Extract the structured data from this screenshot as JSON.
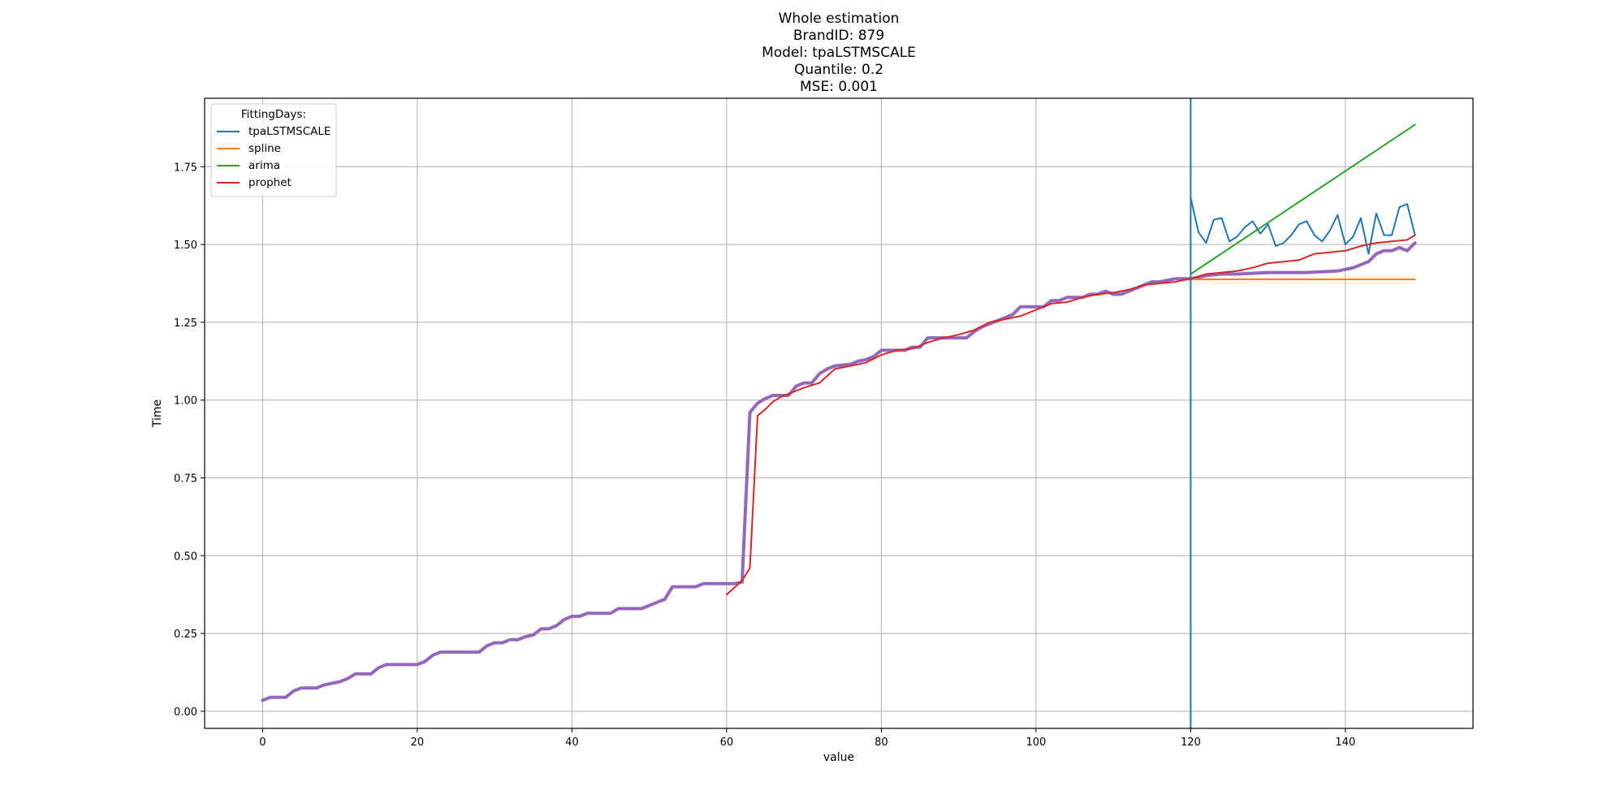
{
  "chart_data": {
    "type": "line",
    "title_lines": [
      "Whole estimation",
      "BrandID: 879",
      "Model: tpaLSTMSCALE",
      "Quantile: 0.2",
      "MSE: 0.001"
    ],
    "xlabel": "value",
    "ylabel": "Time",
    "xlim": [
      -7.5,
      156.5
    ],
    "ylim": [
      -0.055,
      1.97
    ],
    "xticks": [
      0,
      20,
      40,
      60,
      80,
      100,
      120,
      140
    ],
    "yticks": [
      0.0,
      0.25,
      0.5,
      0.75,
      1.0,
      1.25,
      1.5,
      1.75
    ],
    "ytick_labels": [
      "0.00",
      "0.25",
      "0.50",
      "0.75",
      "1.00",
      "1.25",
      "1.50",
      "1.75"
    ],
    "grid": true,
    "vline_x": 120,
    "legend": {
      "title": "FittingDays:",
      "position": "top-left"
    },
    "series": [
      {
        "name": "tpaLSTMSCALE",
        "color": "#1f77b4",
        "x_start": 120,
        "values": [
          1.65,
          1.54,
          1.505,
          1.58,
          1.585,
          1.51,
          1.525,
          1.555,
          1.575,
          1.535,
          1.565,
          1.495,
          1.505,
          1.53,
          1.565,
          1.575,
          1.53,
          1.51,
          1.545,
          1.595,
          1.5,
          1.525,
          1.585,
          1.47,
          1.6,
          1.53,
          1.53,
          1.62,
          1.63,
          1.53
        ]
      },
      {
        "name": "spline",
        "color": "#ff7f0e",
        "x": [
          120,
          149
        ],
        "values": [
          1.388,
          1.388
        ]
      },
      {
        "name": "arima",
        "color": "#2ca02c",
        "x": [
          120,
          149
        ],
        "values": [
          1.405,
          1.885
        ]
      },
      {
        "name": "prophet",
        "color": "#d62728",
        "x": [
          60,
          62,
          63,
          64,
          65,
          66,
          67,
          68,
          70,
          72,
          74,
          76,
          78,
          80,
          82,
          84,
          86,
          88,
          90,
          92,
          94,
          96,
          98,
          100,
          102,
          104,
          106,
          108,
          110,
          112,
          114,
          116,
          118,
          120,
          122,
          124,
          126,
          128,
          130,
          132,
          134,
          136,
          138,
          140,
          142,
          144,
          146,
          148,
          149
        ],
        "values": [
          0.375,
          0.42,
          0.46,
          0.95,
          0.97,
          0.995,
          1.01,
          1.02,
          1.04,
          1.055,
          1.1,
          1.11,
          1.12,
          1.145,
          1.16,
          1.165,
          1.185,
          1.2,
          1.21,
          1.225,
          1.25,
          1.26,
          1.27,
          1.29,
          1.31,
          1.315,
          1.33,
          1.34,
          1.345,
          1.355,
          1.37,
          1.375,
          1.38,
          1.39,
          1.405,
          1.41,
          1.415,
          1.425,
          1.44,
          1.445,
          1.45,
          1.47,
          1.475,
          1.48,
          1.495,
          1.505,
          1.51,
          1.515,
          1.53
        ]
      },
      {
        "name": "",
        "color": "#9467bd",
        "width": 4,
        "x": [
          0,
          1,
          3,
          4,
          5,
          7,
          8,
          10,
          11,
          12,
          14,
          15,
          16,
          20,
          21,
          22,
          23,
          28,
          29,
          30,
          31,
          32,
          33,
          34,
          35,
          36,
          37,
          38,
          39,
          40,
          41,
          42,
          45,
          46,
          49,
          50,
          51,
          52,
          53,
          56,
          57,
          61,
          62,
          63,
          64,
          65,
          66,
          68,
          69,
          70,
          71,
          72,
          73,
          74,
          76,
          77,
          78,
          79,
          80,
          83,
          84,
          85,
          86,
          91,
          92,
          93,
          94,
          95,
          96,
          97,
          98,
          101,
          102,
          103,
          104,
          106,
          107,
          108,
          109,
          110,
          111,
          112,
          113,
          114,
          115,
          116,
          117,
          118,
          119,
          120,
          121,
          122,
          124,
          126,
          130,
          135,
          139,
          141,
          143,
          144,
          145,
          146,
          147,
          148,
          149
        ],
        "values": [
          0.035,
          0.045,
          0.045,
          0.065,
          0.075,
          0.075,
          0.085,
          0.095,
          0.105,
          0.12,
          0.12,
          0.14,
          0.15,
          0.15,
          0.16,
          0.18,
          0.19,
          0.19,
          0.21,
          0.22,
          0.22,
          0.23,
          0.23,
          0.24,
          0.245,
          0.265,
          0.265,
          0.275,
          0.295,
          0.305,
          0.305,
          0.315,
          0.315,
          0.33,
          0.33,
          0.34,
          0.35,
          0.36,
          0.4,
          0.4,
          0.41,
          0.41,
          0.415,
          0.96,
          0.99,
          1.005,
          1.015,
          1.015,
          1.045,
          1.055,
          1.055,
          1.085,
          1.1,
          1.11,
          1.115,
          1.125,
          1.13,
          1.14,
          1.16,
          1.16,
          1.17,
          1.17,
          1.2,
          1.2,
          1.22,
          1.235,
          1.245,
          1.255,
          1.265,
          1.275,
          1.3,
          1.3,
          1.32,
          1.32,
          1.33,
          1.33,
          1.34,
          1.34,
          1.35,
          1.34,
          1.34,
          1.35,
          1.36,
          1.37,
          1.38,
          1.38,
          1.385,
          1.39,
          1.39,
          1.39,
          1.395,
          1.4,
          1.405,
          1.405,
          1.41,
          1.41,
          1.415,
          1.425,
          1.445,
          1.47,
          1.48,
          1.48,
          1.49,
          1.48,
          1.505
        ]
      }
    ]
  }
}
